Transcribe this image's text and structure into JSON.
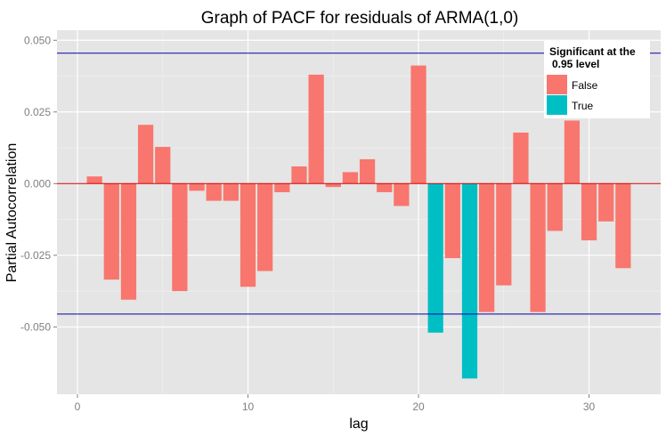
{
  "chart_data": {
    "type": "bar",
    "title": "Graph of PACF for residuals of ARMA(1,0)",
    "xlabel": "lag",
    "ylabel": "Partial Autocorrelation",
    "xlim": [
      -1.2,
      34.2
    ],
    "ylim": [
      -0.0735,
      0.0535
    ],
    "x_ticks": [
      0,
      10,
      20,
      30
    ],
    "x_tick_labels": [
      "0",
      "10",
      "20",
      "30"
    ],
    "y_ticks": [
      -0.05,
      -0.025,
      0.0,
      0.025,
      0.05
    ],
    "y_tick_labels": [
      "-0.050",
      "-0.025",
      "0.000",
      "0.025",
      "0.050"
    ],
    "grid": true,
    "zero_line_color": "#cc0000",
    "significance_threshold": 0.0455,
    "significance_line_color": "#0000aa",
    "legend": {
      "title_line1": "Significant at the",
      "title_line2": "0.95 level",
      "position": "top-right",
      "entries": [
        {
          "label": "False",
          "color": "#F8766D"
        },
        {
          "label": "True",
          "color": "#00BFC4"
        }
      ]
    },
    "bars": [
      {
        "lag": 1,
        "value": 0.0025,
        "significant": false
      },
      {
        "lag": 2,
        "value": -0.0335,
        "significant": false
      },
      {
        "lag": 3,
        "value": -0.0405,
        "significant": false
      },
      {
        "lag": 4,
        "value": 0.0205,
        "significant": false
      },
      {
        "lag": 5,
        "value": 0.0128,
        "significant": false
      },
      {
        "lag": 6,
        "value": -0.0375,
        "significant": false
      },
      {
        "lag": 7,
        "value": -0.0025,
        "significant": false
      },
      {
        "lag": 8,
        "value": -0.006,
        "significant": false
      },
      {
        "lag": 9,
        "value": -0.006,
        "significant": false
      },
      {
        "lag": 10,
        "value": -0.036,
        "significant": false
      },
      {
        "lag": 11,
        "value": -0.0305,
        "significant": false
      },
      {
        "lag": 12,
        "value": -0.003,
        "significant": false
      },
      {
        "lag": 13,
        "value": 0.006,
        "significant": false
      },
      {
        "lag": 14,
        "value": 0.038,
        "significant": false
      },
      {
        "lag": 15,
        "value": -0.0012,
        "significant": false
      },
      {
        "lag": 16,
        "value": 0.004,
        "significant": false
      },
      {
        "lag": 17,
        "value": 0.0085,
        "significant": false
      },
      {
        "lag": 18,
        "value": -0.003,
        "significant": false
      },
      {
        "lag": 19,
        "value": -0.0078,
        "significant": false
      },
      {
        "lag": 20,
        "value": 0.0412,
        "significant": false
      },
      {
        "lag": 21,
        "value": -0.052,
        "significant": true
      },
      {
        "lag": 22,
        "value": -0.026,
        "significant": false
      },
      {
        "lag": 23,
        "value": -0.068,
        "significant": true
      },
      {
        "lag": 24,
        "value": -0.0448,
        "significant": false
      },
      {
        "lag": 25,
        "value": -0.0355,
        "significant": false
      },
      {
        "lag": 26,
        "value": 0.0178,
        "significant": false
      },
      {
        "lag": 27,
        "value": -0.0448,
        "significant": false
      },
      {
        "lag": 28,
        "value": -0.0165,
        "significant": false
      },
      {
        "lag": 29,
        "value": 0.022,
        "significant": false
      },
      {
        "lag": 30,
        "value": -0.0198,
        "significant": false
      },
      {
        "lag": 31,
        "value": -0.0132,
        "significant": false
      },
      {
        "lag": 32,
        "value": -0.0295,
        "significant": false
      }
    ]
  }
}
